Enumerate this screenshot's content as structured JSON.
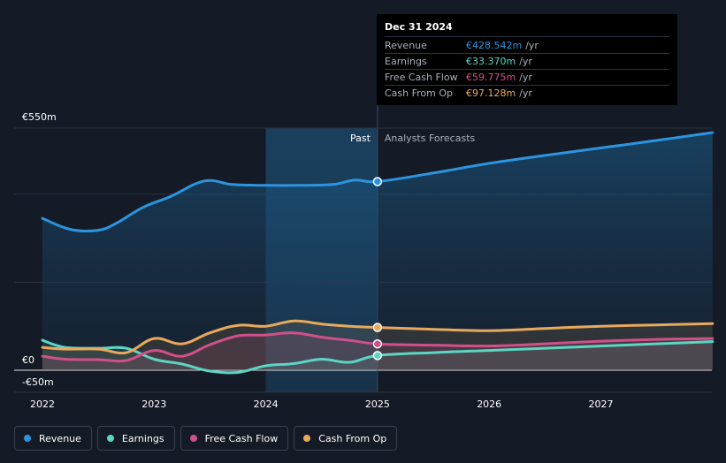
{
  "chart_data": {
    "type": "line",
    "x_ticks": [
      "2022",
      "2023",
      "2024",
      "2025",
      "2026",
      "2027"
    ],
    "y_labels": {
      "top": "€550m",
      "zero": "€0",
      "bottom": "-€50m"
    },
    "ylim": [
      -50,
      550
    ],
    "xlim": [
      2022.0,
      2028.0
    ],
    "divider_x": 2025.0,
    "highlight_start_x": 2024.0,
    "past_label": "Past",
    "forecast_label": "Analysts Forecasts",
    "series": [
      {
        "name": "Revenue",
        "key": "revenue",
        "color": "#2b94e0",
        "x": [
          2022.0,
          2022.25,
          2022.5,
          2022.67,
          2022.9,
          2023.15,
          2023.45,
          2023.7,
          2024.0,
          2024.3,
          2024.6,
          2024.8,
          2025.0,
          2025.5,
          2026.0,
          2026.5,
          2027.0,
          2027.5,
          2028.0
        ],
        "values": [
          345,
          320,
          318,
          335,
          370,
          395,
          430,
          422,
          420,
          420,
          422,
          432,
          428.542,
          448,
          470,
          488,
          505,
          522,
          540
        ]
      },
      {
        "name": "Earnings",
        "key": "earnings",
        "color": "#5ad6c3",
        "x": [
          2022.0,
          2022.2,
          2022.5,
          2022.75,
          2023.0,
          2023.25,
          2023.5,
          2023.75,
          2024.0,
          2024.25,
          2024.5,
          2024.75,
          2025.0,
          2025.5,
          2026.0,
          2026.5,
          2027.0,
          2027.5,
          2028.0
        ],
        "values": [
          68,
          52,
          50,
          50,
          25,
          14,
          -2,
          -5,
          10,
          15,
          25,
          18,
          33.37,
          40,
          45,
          50,
          55,
          60,
          65
        ]
      },
      {
        "name": "Free Cash Flow",
        "key": "fcf",
        "color": "#d0508a",
        "x": [
          2022.0,
          2022.2,
          2022.5,
          2022.75,
          2023.0,
          2023.25,
          2023.5,
          2023.75,
          2024.0,
          2024.25,
          2024.5,
          2024.75,
          2025.0,
          2025.5,
          2026.0,
          2026.5,
          2027.0,
          2027.5,
          2028.0
        ],
        "values": [
          32,
          25,
          24,
          22,
          45,
          32,
          58,
          78,
          80,
          85,
          75,
          68,
          59.775,
          57,
          55,
          60,
          66,
          70,
          72
        ]
      },
      {
        "name": "Cash From Op",
        "key": "cfo",
        "color": "#e8a95c",
        "x": [
          2022.0,
          2022.2,
          2022.5,
          2022.75,
          2023.0,
          2023.25,
          2023.5,
          2023.75,
          2024.0,
          2024.25,
          2024.5,
          2024.75,
          2025.0,
          2025.5,
          2026.0,
          2026.5,
          2027.0,
          2027.5,
          2028.0
        ],
        "values": [
          52,
          48,
          48,
          40,
          72,
          60,
          85,
          102,
          100,
          112,
          105,
          100,
          97.128,
          93,
          90,
          95,
          100,
          103,
          106
        ]
      }
    ]
  },
  "tooltip": {
    "date": "Dec 31 2024",
    "unit": "/yr",
    "rows": [
      {
        "name": "Revenue",
        "value": "€428.542m",
        "color": "#2b94e0"
      },
      {
        "name": "Earnings",
        "value": "€33.370m",
        "color": "#5ad6c3"
      },
      {
        "name": "Free Cash Flow",
        "value": "€59.775m",
        "color": "#d0508a"
      },
      {
        "name": "Cash From Op",
        "value": "€97.128m",
        "color": "#e8a95c"
      }
    ]
  },
  "legend": [
    {
      "label": "Revenue",
      "color": "#2b94e0"
    },
    {
      "label": "Earnings",
      "color": "#5ad6c3"
    },
    {
      "label": "Free Cash Flow",
      "color": "#d0508a"
    },
    {
      "label": "Cash From Op",
      "color": "#e8a95c"
    }
  ]
}
